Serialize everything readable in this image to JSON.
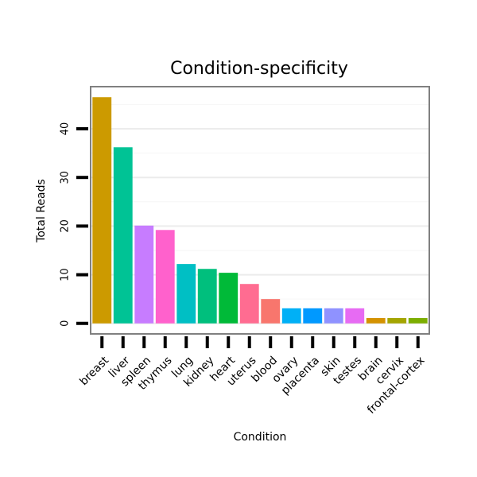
{
  "chart_data": {
    "type": "bar",
    "title": "Condition-specificity",
    "xlabel": "Condition",
    "ylabel": "Total Reads",
    "ylim": [
      -2,
      48.5
    ],
    "yticks": [
      0,
      10,
      20,
      30,
      40
    ],
    "categories": [
      "breast",
      "liver",
      "spleen",
      "thymus",
      "lung",
      "kidney",
      "heart",
      "uterus",
      "blood",
      "ovary",
      "placenta",
      "skin",
      "testes",
      "brain",
      "cervix",
      "frontal-cortex"
    ],
    "values": [
      46.5,
      36.2,
      20.1,
      19.2,
      12.2,
      11.2,
      10.4,
      8.1,
      5.0,
      3.1,
      3.1,
      3.1,
      3.1,
      1.1,
      1.1,
      1.1
    ],
    "colors": [
      "#CC9A00",
      "#00C395",
      "#C77CFF",
      "#FF61CC",
      "#00BFC4",
      "#00BF7D",
      "#00BA38",
      "#FF6C91",
      "#F8766D",
      "#00B0F6",
      "#0099FF",
      "#8F92FF",
      "#E76BF3",
      "#D49200",
      "#A4A500",
      "#7CAE00"
    ],
    "grid": true,
    "legend": "none"
  }
}
